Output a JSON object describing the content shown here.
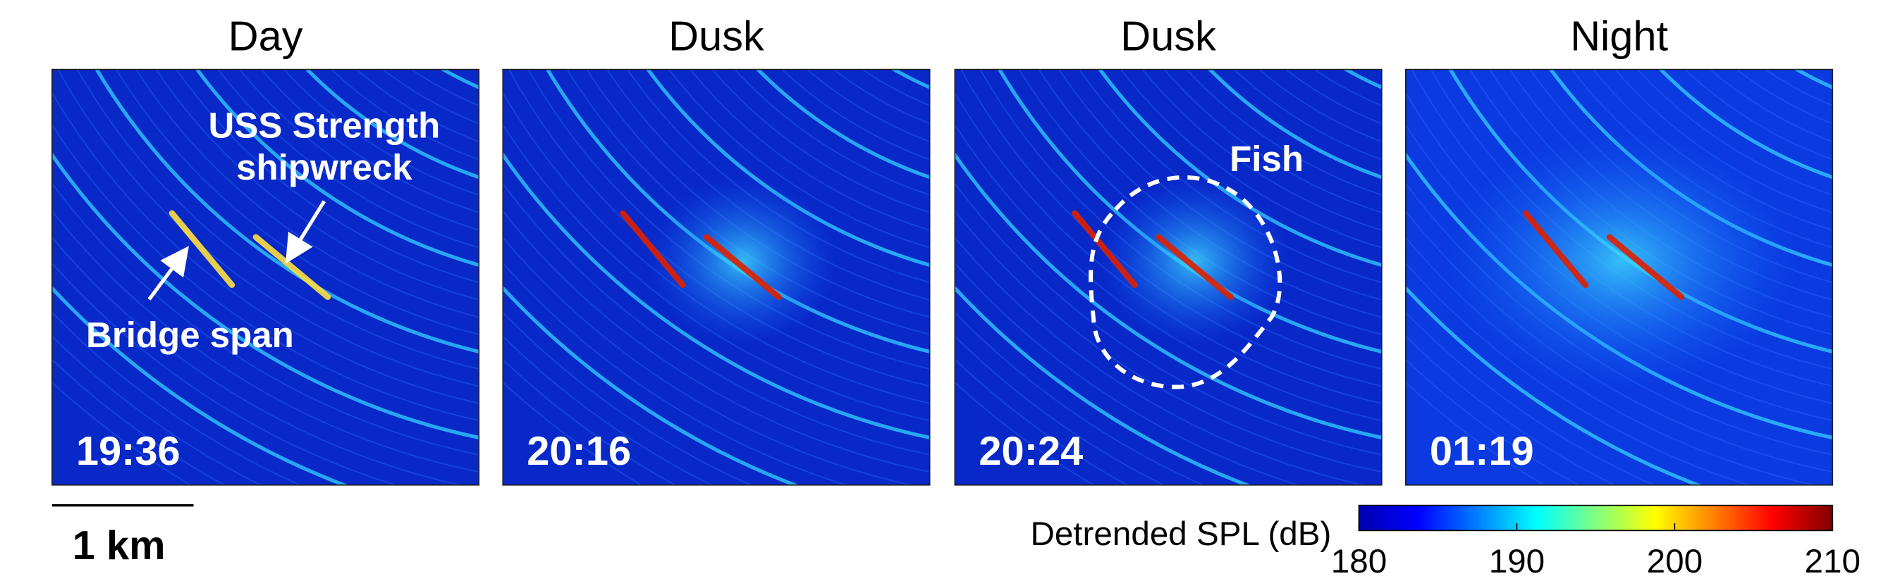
{
  "panels": [
    {
      "title": "Day",
      "time": "19:36"
    },
    {
      "title": "Dusk",
      "time": "20:16"
    },
    {
      "title": "Dusk",
      "time": "20:24"
    },
    {
      "title": "Night",
      "time": "01:19"
    }
  ],
  "annotations": {
    "ship": [
      "USS Strength",
      "shipwreck"
    ],
    "bridge": "Bridge span",
    "fish": "Fish"
  },
  "scale_bar": "1 km",
  "colorbar": {
    "label": "Detrended SPL (dB)",
    "lim": [
      180,
      210
    ],
    "ticks": [
      180,
      190,
      200,
      210
    ]
  }
}
